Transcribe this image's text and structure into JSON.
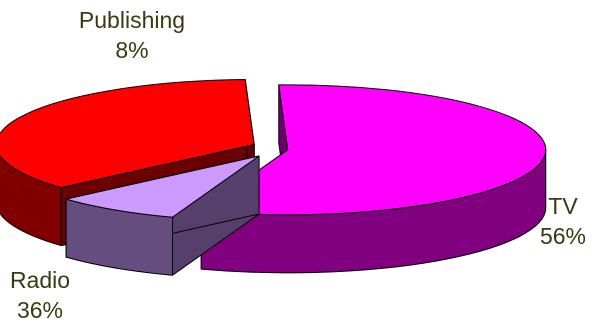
{
  "chart_data": {
    "type": "pie",
    "title": "",
    "three_d": true,
    "exploded": true,
    "legend": "none",
    "categories": [
      "TV",
      "Publishing",
      "Radio"
    ],
    "values": [
      56,
      8,
      36
    ],
    "value_labels": [
      "56%",
      "8%",
      "36%"
    ],
    "colors": {
      "TV": "#ff00ff",
      "Publishing": "#cc99ff",
      "Radio": "#ff0000"
    },
    "label_color": "#3a3a12"
  }
}
